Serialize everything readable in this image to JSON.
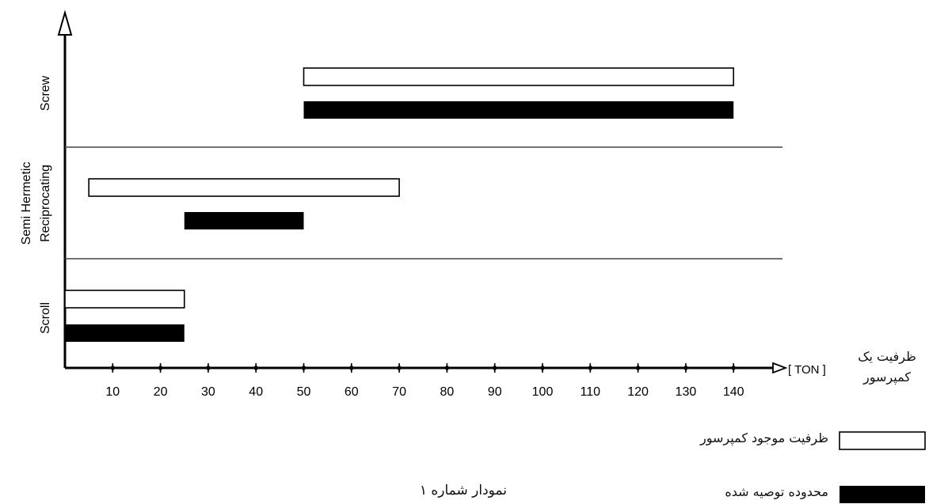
{
  "chart_data": {
    "type": "bar",
    "subtype": "floating-range",
    "x_unit_label": "[ TON ]",
    "x_unit_caption": "ظرفیت یک کمپرسور",
    "x_ticks": [
      10,
      20,
      30,
      40,
      50,
      60,
      70,
      80,
      90,
      100,
      110,
      120,
      130,
      140
    ],
    "xlim": [
      0,
      150
    ],
    "categories": [
      {
        "label": "Screw"
      },
      {
        "label": "Semi Hermetic Reciprocating"
      },
      {
        "label": "Scroll"
      }
    ],
    "series": [
      {
        "name": "ظرفیت موجود کمپرسور",
        "style": "outline",
        "ranges": [
          [
            50,
            140
          ],
          [
            5,
            70
          ],
          [
            0,
            25
          ]
        ]
      },
      {
        "name": "محدوده توصیه شده",
        "style": "filled",
        "ranges": [
          [
            50,
            140
          ],
          [
            25,
            50
          ],
          [
            0,
            25
          ]
        ]
      }
    ],
    "caption": "نمودار شماره ۱",
    "colors": {
      "outline": "#ffffff",
      "filled": "#000000",
      "axis": "#000000"
    }
  }
}
